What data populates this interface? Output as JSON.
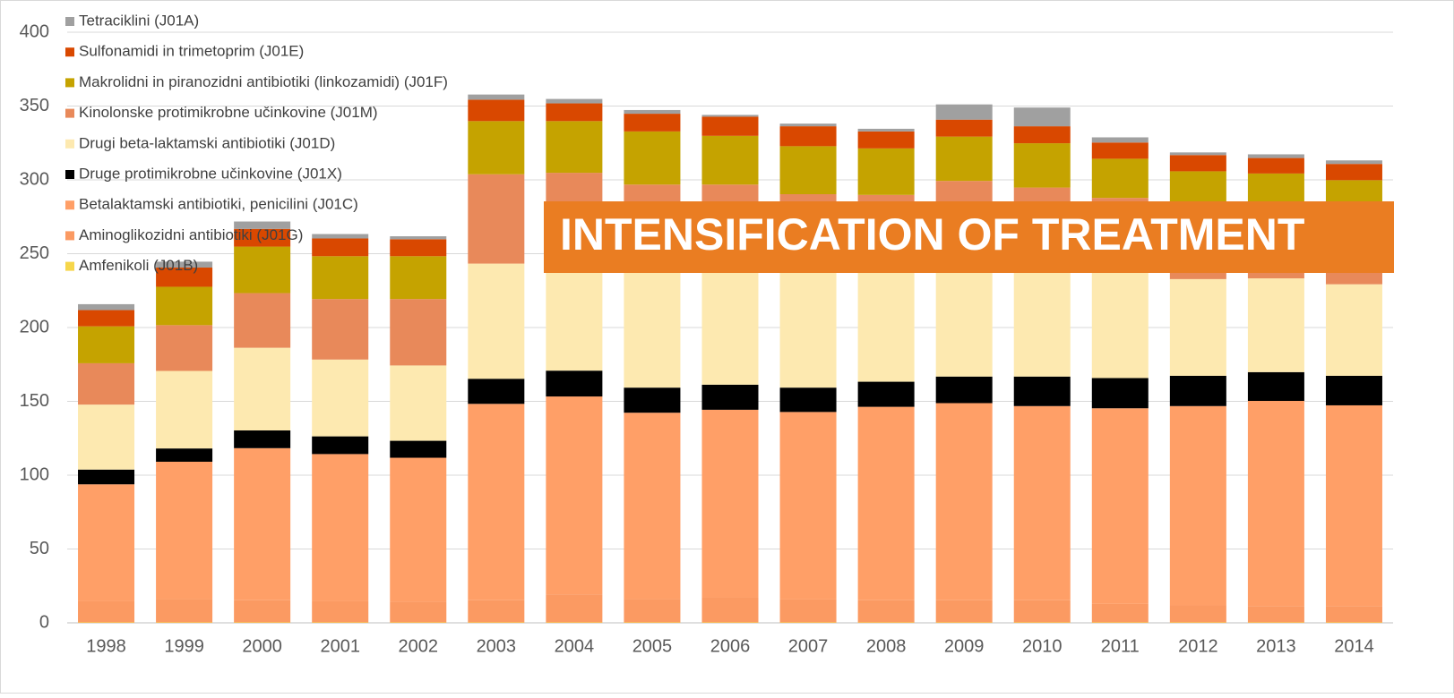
{
  "chart_data": {
    "type": "stacked_bar",
    "annotation": "INTENSIFICATION OF TREATMENT",
    "categories": [
      "1998",
      "1999",
      "2000",
      "2001",
      "2002",
      "2003",
      "2004",
      "2005",
      "2006",
      "2007",
      "2008",
      "2009",
      "2010",
      "2011",
      "2012",
      "2013",
      "2014"
    ],
    "ylim": [
      0,
      400
    ],
    "yticks": [
      0,
      50,
      100,
      150,
      200,
      250,
      300,
      350,
      400
    ],
    "grid": true,
    "legend": "top-left",
    "series": [
      {
        "name": "Amfenikoli (J01B)",
        "color": "#f6d64a",
        "values": [
          0.3,
          0.3,
          0.3,
          0.3,
          0.3,
          0.3,
          0.3,
          0.3,
          0.3,
          0.3,
          0.3,
          0.3,
          0.3,
          0.3,
          0.3,
          0.3,
          0.3
        ]
      },
      {
        "name": "Aminoglikozidni antibiotiki (J01G)",
        "color": "#fb9a62",
        "values": [
          14.5,
          15.8,
          15,
          14.5,
          14,
          15,
          19,
          16,
          17,
          15.5,
          15,
          15,
          15,
          12.5,
          11.5,
          11,
          11
        ]
      },
      {
        "name": "Betalaktamski antibiotiki, penicilini (J01C)",
        "color": "#ff9f67",
        "values": [
          79,
          93,
          103,
          99.5,
          97.5,
          133,
          134,
          126,
          127,
          127,
          131,
          133.5,
          131.5,
          132.5,
          135,
          139,
          136
        ]
      },
      {
        "name": "Druge protimikrobne učinkovine (J01X)",
        "color": "#000000",
        "values": [
          10,
          9,
          12,
          12,
          11.5,
          17,
          17.5,
          17,
          17,
          16.5,
          17,
          18,
          20,
          20.5,
          20.5,
          19.5,
          20
        ]
      },
      {
        "name": "Drugi beta-laktamski antibiotiki (J01D)",
        "color": "#fde9b0",
        "values": [
          44,
          52.5,
          56,
          52,
          51,
          78,
          74,
          86,
          84,
          81,
          77,
          73,
          73,
          72.5,
          65.5,
          63.5,
          62
        ]
      },
      {
        "name": "Kinolonske protimikrobne učinkovine (J01M)",
        "color": "#e8895a",
        "values": [
          28,
          31,
          37,
          41,
          45,
          60.5,
          60,
          51.5,
          51.5,
          50,
          49.5,
          59.5,
          55,
          49.5,
          42,
          40,
          41
        ]
      },
      {
        "name": "Makrolidni  in piranozidni antibiotiki (linkozamidi) (J01F)",
        "color": "#c5a300",
        "values": [
          25,
          26,
          31.5,
          29,
          29,
          36,
          35,
          36,
          33,
          32.5,
          31.5,
          30,
          30,
          26.5,
          31,
          31,
          29.5
        ]
      },
      {
        "name": "Sulfonamidi in trimetoprim (J01E)",
        "color": "#d94800",
        "values": [
          11,
          13,
          12,
          12,
          11.5,
          14.5,
          12,
          12,
          13,
          13.5,
          11.5,
          11.5,
          11.5,
          11,
          11,
          10.5,
          11
        ]
      },
      {
        "name": "Tetraciklini (J01A)",
        "color": "#a0a0a0",
        "values": [
          4,
          4,
          5,
          3,
          2,
          3.5,
          3,
          2.5,
          1.2,
          1.8,
          1.8,
          10.3,
          12.7,
          3.5,
          1.8,
          2.5,
          2.4
        ]
      }
    ]
  }
}
